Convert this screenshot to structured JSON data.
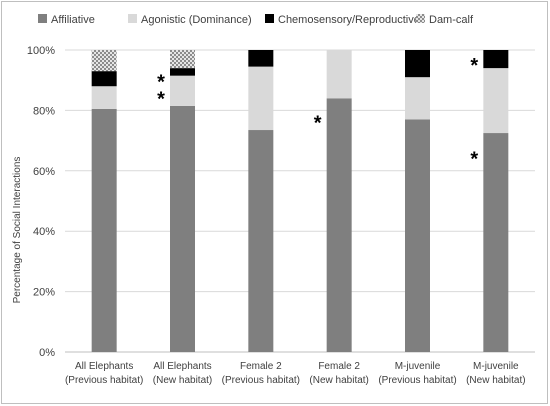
{
  "chart_data": {
    "type": "bar",
    "stacked": true,
    "categories": [
      [
        "All Elephants",
        "(Previous habitat)"
      ],
      [
        "All Elephants",
        "(New habitat)"
      ],
      [
        "Female 2",
        "(Previous habitat)"
      ],
      [
        "Female 2",
        "(New habitat)"
      ],
      [
        "M-juvenile",
        "(Previous habitat)"
      ],
      [
        "M-juvenile",
        "(New habitat)"
      ]
    ],
    "series": [
      {
        "name": "Affiliative",
        "color": "#7f7f7f",
        "values": [
          80.5,
          81.5,
          73.5,
          84,
          77,
          72.5
        ]
      },
      {
        "name": "Agonistic (Dominance)",
        "color": "#d9d9d9",
        "values": [
          7.5,
          10,
          21,
          16,
          14,
          21.5
        ]
      },
      {
        "name": "Chemosensory/Reproductive",
        "color": "#000000",
        "values": [
          5,
          2.5,
          5.5,
          0,
          9,
          6
        ]
      },
      {
        "name": "Dam-calf",
        "color": "#bfbfbf",
        "pattern": "checker",
        "values": [
          7,
          6,
          0,
          0,
          0,
          0
        ]
      }
    ],
    "ylabel": "Percentage of Social Interactions",
    "ylim": [
      0,
      100
    ],
    "yticks": [
      "0%",
      "20%",
      "40%",
      "60%",
      "80%",
      "100%"
    ],
    "legend_position": "top",
    "gridlines": true,
    "annotations": [
      {
        "text": "*",
        "category_index": 1,
        "value": 91.5,
        "side": "left"
      },
      {
        "text": "*",
        "category_index": 1,
        "value": 86,
        "side": "left"
      },
      {
        "text": "*",
        "category_index": 3,
        "value": 78,
        "side": "left"
      },
      {
        "text": "*",
        "category_index": 5,
        "value": 97,
        "side": "left"
      },
      {
        "text": "*",
        "category_index": 5,
        "value": 66,
        "side": "left"
      }
    ]
  }
}
